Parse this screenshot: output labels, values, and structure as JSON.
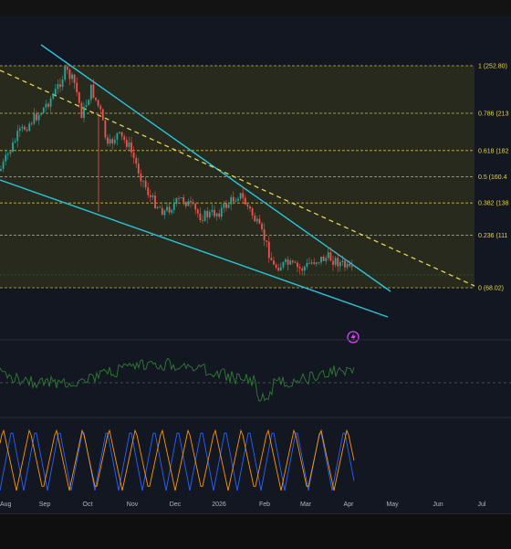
{
  "colors": {
    "background": "#131722",
    "fib_zone": "#3b3a1a",
    "fib_line": "#e6d350",
    "trendline": "#26c6da",
    "candle_up": "#26a69a",
    "candle_down": "#ef5350",
    "rsi_line": "#2e7d32",
    "stoch_k": "#2962ff",
    "stoch_d": "#ff9800"
  },
  "fib_levels": [
    {
      "label": "1 (252.80)",
      "ratio": 1
    },
    {
      "label": "0.786 (213",
      "ratio": 0.786
    },
    {
      "label": "0.618 (182",
      "ratio": 0.618
    },
    {
      "label": "0.5 (160.4",
      "ratio": 0.5
    },
    {
      "label": "0.382 (138",
      "ratio": 0.382
    },
    {
      "label": "0.236 (111",
      "ratio": 0.236
    },
    {
      "label": "0 (68.02)",
      "ratio": 0
    }
  ],
  "time_axis": {
    "labels": [
      "Aug",
      "Sep",
      "Oct",
      "Nov",
      "Dec",
      "2026",
      "Feb",
      "Mar",
      "Apr",
      "May",
      "Jun",
      "Jul"
    ]
  },
  "icons": {
    "replay": "lightning-icon"
  }
}
